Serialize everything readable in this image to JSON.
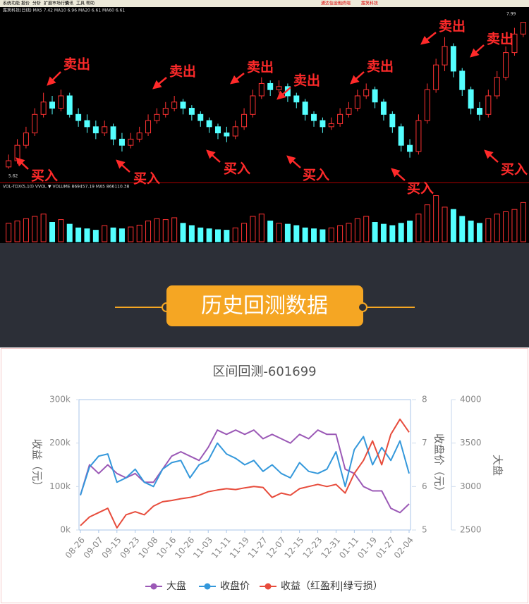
{
  "menu": [
    "系统",
    "功能",
    "报价",
    "分析",
    "扩展市场行情",
    "资讯",
    "工具",
    "帮助"
  ],
  "menu_right": [
    "通达信金融终端",
    "露笑科技"
  ],
  "info": "露笑科技(日线) MA5 7.42 MA10 6.96 MA20 6.61 MA60 6.61",
  "vol_info": "VOL-TDX(5,10) VVOL ▼ VOLUME 869457.19 MA5 866110.38",
  "low_label": "5.62",
  "high_label": "7.99",
  "signals": {
    "sell": [
      "卖出",
      "卖出",
      "卖出",
      "卖出",
      "卖出",
      "卖出",
      "卖出"
    ],
    "buy": [
      "买入",
      "买入",
      "买入",
      "买入",
      "买入",
      "买入"
    ]
  },
  "kline": {
    "ylim": [
      5.5,
      8.1
    ],
    "vlim": [
      0,
      110
    ],
    "candles": [
      [
        5.65,
        5.75,
        5.85,
        5.62
      ],
      [
        5.75,
        6.0,
        6.1,
        5.7
      ],
      [
        6.0,
        6.2,
        6.3,
        5.95
      ],
      [
        6.2,
        6.5,
        6.6,
        6.15
      ],
      [
        6.5,
        6.7,
        6.85,
        6.45
      ],
      [
        6.7,
        6.6,
        6.8,
        6.5
      ],
      [
        6.6,
        6.8,
        6.9,
        6.55
      ],
      [
        6.8,
        6.5,
        6.85,
        6.45
      ],
      [
        6.5,
        6.4,
        6.6,
        6.3
      ],
      [
        6.4,
        6.3,
        6.5,
        6.2
      ],
      [
        6.3,
        6.2,
        6.4,
        6.1
      ],
      [
        6.2,
        6.3,
        6.4,
        6.15
      ],
      [
        6.3,
        6.1,
        6.35,
        6.0
      ],
      [
        6.1,
        6.0,
        6.2,
        5.9
      ],
      [
        6.0,
        6.1,
        6.2,
        5.95
      ],
      [
        6.1,
        6.2,
        6.3,
        6.05
      ],
      [
        6.2,
        6.4,
        6.5,
        6.15
      ],
      [
        6.4,
        6.5,
        6.6,
        6.35
      ],
      [
        6.5,
        6.6,
        6.7,
        6.45
      ],
      [
        6.6,
        6.7,
        6.8,
        6.55
      ],
      [
        6.7,
        6.6,
        6.75,
        6.5
      ],
      [
        6.6,
        6.5,
        6.65,
        6.4
      ],
      [
        6.5,
        6.4,
        6.55,
        6.3
      ],
      [
        6.4,
        6.3,
        6.45,
        6.2
      ],
      [
        6.3,
        6.2,
        6.35,
        6.1
      ],
      [
        6.2,
        6.15,
        6.3,
        6.05
      ],
      [
        6.15,
        6.3,
        6.4,
        6.1
      ],
      [
        6.3,
        6.5,
        6.6,
        6.25
      ],
      [
        6.5,
        6.8,
        6.9,
        6.45
      ],
      [
        6.8,
        7.0,
        7.1,
        6.75
      ],
      [
        7.0,
        6.9,
        7.05,
        6.8
      ],
      [
        6.9,
        6.95,
        7.05,
        6.85
      ],
      [
        6.95,
        6.8,
        7.0,
        6.7
      ],
      [
        6.8,
        6.7,
        6.85,
        6.6
      ],
      [
        6.7,
        6.5,
        6.75,
        6.4
      ],
      [
        6.5,
        6.4,
        6.55,
        6.3
      ],
      [
        6.4,
        6.3,
        6.45,
        6.2
      ],
      [
        6.3,
        6.35,
        6.45,
        6.25
      ],
      [
        6.35,
        6.5,
        6.6,
        6.3
      ],
      [
        6.5,
        6.6,
        6.7,
        6.45
      ],
      [
        6.6,
        6.8,
        6.9,
        6.55
      ],
      [
        6.8,
        6.9,
        7.0,
        6.75
      ],
      [
        6.9,
        6.7,
        6.95,
        6.6
      ],
      [
        6.7,
        6.5,
        6.75,
        6.4
      ],
      [
        6.5,
        6.3,
        6.55,
        6.2
      ],
      [
        6.3,
        6.0,
        6.35,
        5.9
      ],
      [
        6.0,
        5.9,
        6.1,
        5.8
      ],
      [
        5.9,
        6.4,
        6.5,
        5.85
      ],
      [
        6.4,
        6.9,
        7.0,
        6.35
      ],
      [
        6.9,
        7.3,
        7.4,
        6.85
      ],
      [
        7.3,
        7.6,
        7.75,
        7.2
      ],
      [
        7.6,
        7.2,
        7.65,
        7.1
      ],
      [
        7.2,
        6.9,
        7.25,
        6.8
      ],
      [
        6.9,
        6.6,
        6.95,
        6.5
      ],
      [
        6.6,
        6.5,
        6.7,
        6.4
      ],
      [
        6.5,
        6.8,
        6.9,
        6.45
      ],
      [
        6.8,
        7.1,
        7.2,
        6.75
      ],
      [
        7.1,
        7.5,
        7.6,
        7.05
      ],
      [
        7.5,
        7.8,
        7.9,
        7.45
      ],
      [
        7.8,
        7.99,
        7.99,
        7.75
      ]
    ],
    "volumes": [
      40,
      45,
      50,
      55,
      60,
      42,
      48,
      38,
      30,
      28,
      25,
      35,
      30,
      28,
      32,
      36,
      45,
      50,
      48,
      52,
      40,
      35,
      30,
      28,
      26,
      25,
      30,
      40,
      55,
      60,
      45,
      40,
      38,
      35,
      30,
      28,
      26,
      30,
      35,
      40,
      50,
      55,
      42,
      38,
      35,
      40,
      45,
      60,
      80,
      100,
      75,
      70,
      55,
      45,
      40,
      50,
      60,
      65,
      70,
      85
    ]
  },
  "banner": "历史回测数据",
  "chart_data": {
    "type": "line",
    "title": "区间回测-601699",
    "categories": [
      "08-26",
      null,
      "09-07",
      null,
      "09-15",
      null,
      "09-23",
      null,
      "10-08",
      null,
      "10-16",
      null,
      "10-26",
      null,
      "11-03",
      null,
      "11-11",
      null,
      "11-19",
      null,
      "11-27",
      null,
      "12-07",
      null,
      "12-15",
      null,
      "12-23",
      null,
      "12-31",
      null,
      "01-11",
      null,
      "01-19",
      null,
      "01-27",
      null,
      "02-04"
    ],
    "ylabel": "收益（元）",
    "y2label": "收盘价（元）",
    "y3label": "大盘",
    "ylim": [
      0,
      300000
    ],
    "yticks": [
      {
        "value": 0,
        "label": "0k"
      },
      {
        "value": 100000,
        "label": "100k"
      },
      {
        "value": 200000,
        "label": "200k"
      },
      {
        "value": 300000,
        "label": "300k"
      }
    ],
    "y2lim": [
      5,
      8
    ],
    "y2ticks": [
      5,
      6,
      7,
      8
    ],
    "y3lim": [
      2500,
      4000
    ],
    "y3ticks": [
      2500,
      3000,
      3500,
      4000
    ],
    "grid": false,
    "series": [
      {
        "name": "大盘",
        "color": "#9b59b6",
        "axis": "y3",
        "values": [
          2900,
          3250,
          3150,
          3250,
          3150,
          3100,
          3150,
          3050,
          3050,
          3200,
          3350,
          3400,
          3350,
          3300,
          3450,
          3650,
          3600,
          3650,
          3600,
          3650,
          3550,
          3600,
          3550,
          3500,
          3600,
          3550,
          3650,
          3600,
          3600,
          3200,
          3150,
          3000,
          2950,
          2950,
          2750,
          2700,
          2800
        ]
      },
      {
        "name": "收盘价",
        "color": "#3498db",
        "axis": "y2",
        "values": [
          5.8,
          6.45,
          6.7,
          6.75,
          6.1,
          6.2,
          6.4,
          6.1,
          6.0,
          6.4,
          6.55,
          6.6,
          6.2,
          6.5,
          6.6,
          7.0,
          6.75,
          6.65,
          6.5,
          6.6,
          6.35,
          6.5,
          6.3,
          6.2,
          6.55,
          6.35,
          6.3,
          6.4,
          6.8,
          6.0,
          6.85,
          7.15,
          6.5,
          6.9,
          6.6,
          7.05,
          6.3
        ]
      },
      {
        "name": "收益（红盈利|绿亏损）",
        "color": "#e74c3c",
        "values": [
          10000,
          30000,
          40000,
          50000,
          5000,
          35000,
          42000,
          35000,
          55000,
          65000,
          68000,
          72000,
          75000,
          80000,
          88000,
          92000,
          95000,
          93000,
          97000,
          100000,
          98000,
          75000,
          85000,
          80000,
          95000,
          100000,
          105000,
          100000,
          105000,
          85000,
          130000,
          160000,
          205000,
          150000,
          220000,
          255000,
          225000
        ]
      }
    ]
  }
}
